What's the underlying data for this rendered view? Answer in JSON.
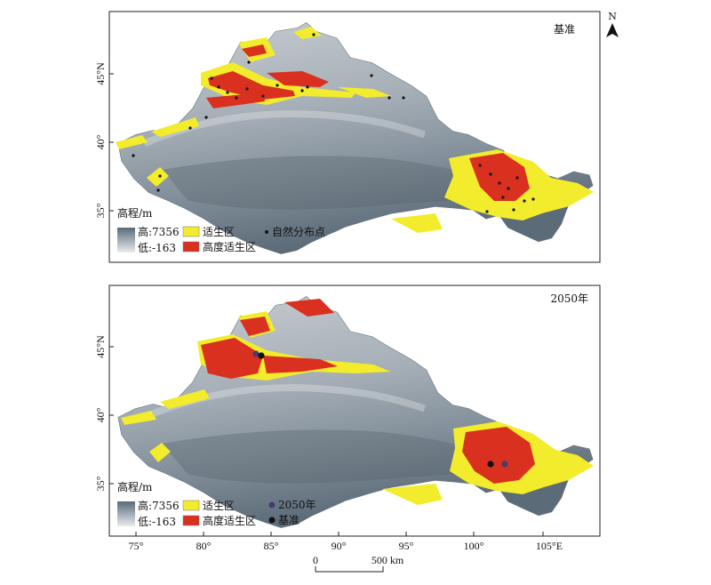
{
  "north_arrow": {
    "letter": "N"
  },
  "panels": [
    {
      "title": "基准",
      "elevation_legend": {
        "title": "高程/m",
        "high": "高:7356",
        "low": "低:-163"
      },
      "class_legend": [
        {
          "label": "适生区",
          "color": "#f2ec2c"
        },
        {
          "label": "高度适生区",
          "color": "#d9301f"
        }
      ],
      "points_legend": [
        {
          "label": "自然分布点",
          "color": "#111111"
        }
      ],
      "lat_ticks": [
        "45°N",
        "40°",
        "35°"
      ]
    },
    {
      "title": "2050年",
      "elevation_legend": {
        "title": "高程/m",
        "high": "高:7356",
        "low": "低:-163"
      },
      "class_legend": [
        {
          "label": "适生区",
          "color": "#f2ec2c"
        },
        {
          "label": "高度适生区",
          "color": "#d9301f"
        }
      ],
      "points_legend": [
        {
          "label": "2050年",
          "color": "#4a3a6e"
        },
        {
          "label": "基准",
          "color": "#111111"
        }
      ],
      "lat_ticks": [
        "45°N",
        "40°",
        "35°"
      ]
    }
  ],
  "lon_ticks": [
    "75°",
    "80°",
    "85°",
    "90°",
    "95°",
    "100°",
    "105°E"
  ],
  "scale_bar": {
    "zero": "0",
    "end": "500 km"
  }
}
